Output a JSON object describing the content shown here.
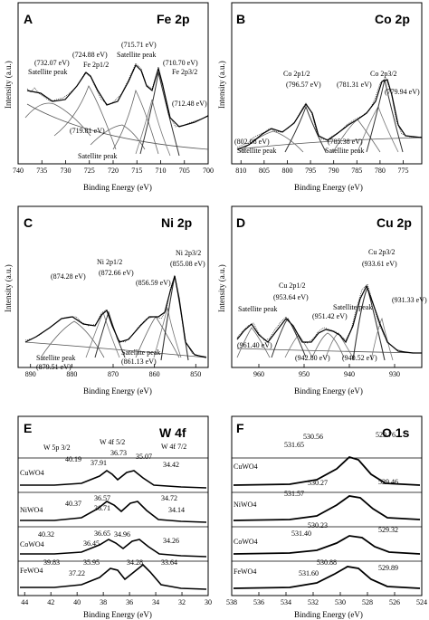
{
  "figure": {
    "panels": [
      {
        "letter": "A",
        "title": "Fe 2p"
      },
      {
        "letter": "B",
        "title": "Co 2p"
      },
      {
        "letter": "C",
        "title": "Ni 2p"
      },
      {
        "letter": "D",
        "title": "Cu 2p"
      },
      {
        "letter": "E",
        "title": "W 4f"
      },
      {
        "letter": "F",
        "title": "O 1s"
      }
    ]
  },
  "chart_data": [
    {
      "type": "line",
      "title": "Fe 2p",
      "xlabel": "Binding Energy (eV)",
      "ylabel": "Intensity (a.u.)",
      "xlim": [
        740,
        700
      ],
      "x_ticks": [
        740,
        735,
        730,
        725,
        720,
        715,
        710,
        705,
        700
      ],
      "peaks": [
        {
          "label": "(732.07 eV)",
          "note": "Satellite peak",
          "x": 732.07
        },
        {
          "label": "(724.88 eV)",
          "note": "Fe 2p1/2",
          "x": 724.88
        },
        {
          "label": "(719.81 eV)",
          "note": "Satellite peak",
          "x": 719.81
        },
        {
          "label": "(715.71 eV)",
          "note": "Satellite peak",
          "x": 715.71
        },
        {
          "label": "(710.70 eV)",
          "note": "Fe 2p3/2",
          "x": 710.7
        },
        {
          "label": "(712.48 eV)",
          "note": "",
          "x": 712.48
        }
      ]
    },
    {
      "type": "line",
      "title": "Co 2p",
      "xlabel": "Binding Energy (eV)",
      "ylabel": "Intensity (a.u.)",
      "xlim": [
        812,
        771
      ],
      "x_ticks": [
        810,
        805,
        800,
        795,
        790,
        785,
        780,
        775
      ],
      "peaks": [
        {
          "label": "(796.57 eV)",
          "note": "Co 2p1/2",
          "x": 796.57
        },
        {
          "label": "(802.08 eV)",
          "note": "Satellite peak",
          "x": 802.08
        },
        {
          "label": "(781.31 eV)",
          "note": "Co 2p3/2",
          "x": 781.31
        },
        {
          "label": "(779.94 eV)",
          "note": "",
          "x": 779.94
        },
        {
          "label": "(785.38 eV)",
          "note": "Satellite peak",
          "x": 785.38
        }
      ]
    },
    {
      "type": "line",
      "title": "Ni 2p",
      "xlabel": "Binding Energy (eV)",
      "ylabel": "Intensity (a.u.)",
      "xlim": [
        893,
        847
      ],
      "x_ticks": [
        890,
        880,
        870,
        860,
        850
      ],
      "peaks": [
        {
          "label": "(874.28 eV)",
          "note": "",
          "x": 874.28
        },
        {
          "label": "(872.66 eV)",
          "note": "Ni 2p1/2",
          "x": 872.66
        },
        {
          "label": "(856.59 eV)",
          "note": "",
          "x": 856.59
        },
        {
          "label": "(855.08 eV)",
          "note": "Ni 2p3/2",
          "x": 855.08
        },
        {
          "label": "(879.51 eV)",
          "note": "Satellite peak",
          "x": 879.51
        },
        {
          "label": "(861.13 eV)",
          "note": "Satellite peak",
          "x": 861.13
        }
      ]
    },
    {
      "type": "line",
      "title": "Cu 2p",
      "xlabel": "Binding Energy (eV)",
      "ylabel": "Intensity (a.u.)",
      "xlim": [
        966,
        924
      ],
      "x_ticks": [
        960,
        950,
        940,
        930
      ],
      "peaks": [
        {
          "label": "(961.40 eV)",
          "note": "Satellite peak",
          "x": 961.4
        },
        {
          "label": "(953.64 eV)",
          "note": "Cu 2p1/2",
          "x": 953.64
        },
        {
          "label": "(951.42 eV)",
          "note": "",
          "x": 951.42
        },
        {
          "label": "(942.80 eV)",
          "note": "",
          "x": 942.8
        },
        {
          "label": "(940.52 eV)",
          "note": "Satellite peak",
          "x": 940.52
        },
        {
          "label": "(933.61 eV)",
          "note": "Cu 2p3/2",
          "x": 933.61
        },
        {
          "label": "(931.33 eV)",
          "note": "",
          "x": 931.33
        }
      ]
    },
    {
      "type": "line",
      "title": "W 4f",
      "xlabel": "Binding Energy (eV)",
      "ylabel": "",
      "xlim": [
        44.5,
        30
      ],
      "x_ticks": [
        44,
        42,
        40,
        38,
        36,
        34,
        32,
        30
      ],
      "series": [
        {
          "name": "CuWO4",
          "peak_labels": [
            "40.19",
            "37.91",
            "36.73",
            "35.07",
            "34.42"
          ]
        },
        {
          "name": "NiWO4",
          "peak_labels": [
            "40.37",
            "36.57",
            "36.71",
            "34.72",
            "34.14"
          ]
        },
        {
          "name": "CoWO4",
          "peak_labels": [
            "40.32",
            "36.65",
            "36.45",
            "34.96",
            "34.26"
          ]
        },
        {
          "name": "FeWO4",
          "peak_labels": [
            "39.83",
            "35.95",
            "37.22",
            "34.28",
            "33.64"
          ]
        }
      ],
      "annotations": [
        "W 5p 3/2",
        "W 4f 5/2",
        "W 4f 7/2"
      ]
    },
    {
      "type": "line",
      "title": "O 1s",
      "xlabel": "Binding Energy (eV)",
      "ylabel": "",
      "xlim": [
        538,
        524
      ],
      "x_ticks": [
        538,
        536,
        534,
        532,
        530,
        528,
        526,
        524
      ],
      "series": [
        {
          "name": "CuWO4",
          "peak_labels": [
            "530.56",
            "531.65",
            "529.76"
          ]
        },
        {
          "name": "NiWO4",
          "peak_labels": [
            "530.27",
            "531.57",
            "529.46"
          ]
        },
        {
          "name": "CoWO4",
          "peak_labels": [
            "530.23",
            "531.40",
            "529.32"
          ]
        },
        {
          "name": "FeWO4",
          "peak_labels": [
            "530.88",
            "531.60",
            "529.89"
          ]
        }
      ]
    }
  ]
}
